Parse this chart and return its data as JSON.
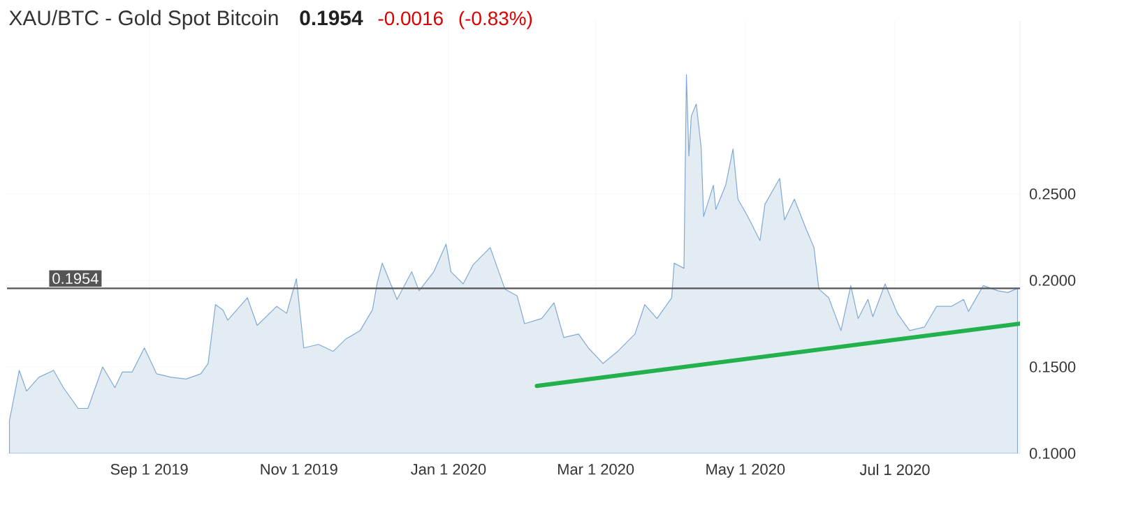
{
  "chart_data": {
    "type": "area",
    "title": "XAU/BTC - Gold Spot Bitcoin",
    "annotations": [
      "0.1954",
      "-0.0016",
      "(-0.83%)"
    ],
    "series": [
      {
        "color": "#e3ecf3",
        "x": [
          "2019-07-06",
          "2019-07-10",
          "2019-07-13",
          "2019-07-18",
          "2019-07-24",
          "2019-07-28",
          "2019-08-03",
          "2019-08-07",
          "2019-08-13",
          "2019-08-18",
          "2019-08-21",
          "2019-08-25",
          "2019-08-30",
          "2019-09-02",
          "2019-09-04",
          "2019-09-10",
          "2019-09-16",
          "2019-09-22",
          "2019-09-25",
          "2019-09-28",
          "2019-10-01",
          "2019-10-03",
          "2019-10-11",
          "2019-10-15",
          "2019-10-23",
          "2019-10-27",
          "2019-10-31",
          "2019-11-03",
          "2019-11-09",
          "2019-11-15",
          "2019-11-20",
          "2019-11-26",
          "2019-12-01",
          "2019-12-03",
          "2019-12-05",
          "2019-12-11",
          "2019-12-17",
          "2019-12-20",
          "2019-12-26",
          "2019-12-31",
          "2020-01-02",
          "2020-01-07",
          "2020-01-11",
          "2020-01-18",
          "2020-01-24",
          "2020-01-29",
          "2020-02-01",
          "2020-02-08",
          "2020-02-13",
          "2020-02-17",
          "2020-02-23",
          "2020-02-27",
          "2020-03-04",
          "2020-03-10",
          "2020-03-17",
          "2020-03-21",
          "2020-03-26",
          "2020-04-01",
          "2020-04-02",
          "2020-04-06",
          "2020-04-07",
          "2020-04-08",
          "2020-04-09",
          "2020-04-11",
          "2020-04-13",
          "2020-04-14",
          "2020-04-18",
          "2020-04-19",
          "2020-04-23",
          "2020-04-26",
          "2020-04-28",
          "2020-05-02",
          "2020-05-07",
          "2020-05-09",
          "2020-05-15",
          "2020-05-17",
          "2020-05-21",
          "2020-05-26",
          "2020-05-29",
          "2020-05-31",
          "2020-06-04",
          "2020-06-09",
          "2020-06-13",
          "2020-06-16",
          "2020-06-20",
          "2020-06-22",
          "2020-06-27",
          "2020-07-02",
          "2020-07-07",
          "2020-07-13",
          "2020-07-18",
          "2020-07-24",
          "2020-07-29",
          "2020-07-31",
          "2020-08-06",
          "2020-08-12",
          "2020-08-16",
          "2020-08-20"
        ],
        "values": [
          0.119,
          0.148,
          0.136,
          0.144,
          0.148,
          0.138,
          0.126,
          0.126,
          0.15,
          0.138,
          0.147,
          0.147,
          0.161,
          0.152,
          0.146,
          0.144,
          0.143,
          0.146,
          0.152,
          0.186,
          0.183,
          0.177,
          0.19,
          0.174,
          0.185,
          0.181,
          0.201,
          0.161,
          0.163,
          0.159,
          0.166,
          0.171,
          0.183,
          0.199,
          0.21,
          0.189,
          0.205,
          0.194,
          0.205,
          0.221,
          0.205,
          0.198,
          0.209,
          0.219,
          0.195,
          0.191,
          0.175,
          0.178,
          0.187,
          0.167,
          0.169,
          0.161,
          0.152,
          0.159,
          0.169,
          0.186,
          0.178,
          0.19,
          0.21,
          0.207,
          0.319,
          0.272,
          0.295,
          0.302,
          0.277,
          0.237,
          0.255,
          0.241,
          0.255,
          0.276,
          0.247,
          0.237,
          0.223,
          0.244,
          0.259,
          0.235,
          0.247,
          0.229,
          0.219,
          0.195,
          0.19,
          0.171,
          0.197,
          0.178,
          0.189,
          0.179,
          0.198,
          0.181,
          0.171,
          0.173,
          0.185,
          0.185,
          0.189,
          0.182,
          0.197,
          0.194,
          0.193,
          0.1954
        ]
      },
      {
        "type": "line",
        "color": "#22b14c",
        "x": [
          "2020-02-06",
          "2020-08-21"
        ],
        "values": [
          0.139,
          0.175
        ]
      }
    ],
    "xlim": [
      "2019-07-05",
      "2020-08-21"
    ],
    "xticks": [
      {
        "value": "2019-09-01",
        "label": "Sep 1 2019"
      },
      {
        "value": "2019-11-01",
        "label": "Nov 1 2019"
      },
      {
        "value": "2020-01-01",
        "label": "Jan 1 2020"
      },
      {
        "value": "2020-03-01",
        "label": "Mar 1 2020"
      },
      {
        "value": "2020-05-01",
        "label": "May 1 2020"
      },
      {
        "value": "2020-07-01",
        "label": "Jul 1 2020"
      }
    ],
    "ylim": [
      0.1,
      0.35
    ],
    "yticks": [
      {
        "value": 0.1,
        "label": "0.1000"
      },
      {
        "value": 0.15,
        "label": "0.1500"
      },
      {
        "value": 0.2,
        "label": "0.2000"
      },
      {
        "value": 0.25,
        "label": "0.2500"
      }
    ],
    "ref_lines": [
      {
        "axis": "y",
        "value": 0.1954,
        "label": "0.1954",
        "color": "#555555"
      }
    ],
    "grid": true
  }
}
